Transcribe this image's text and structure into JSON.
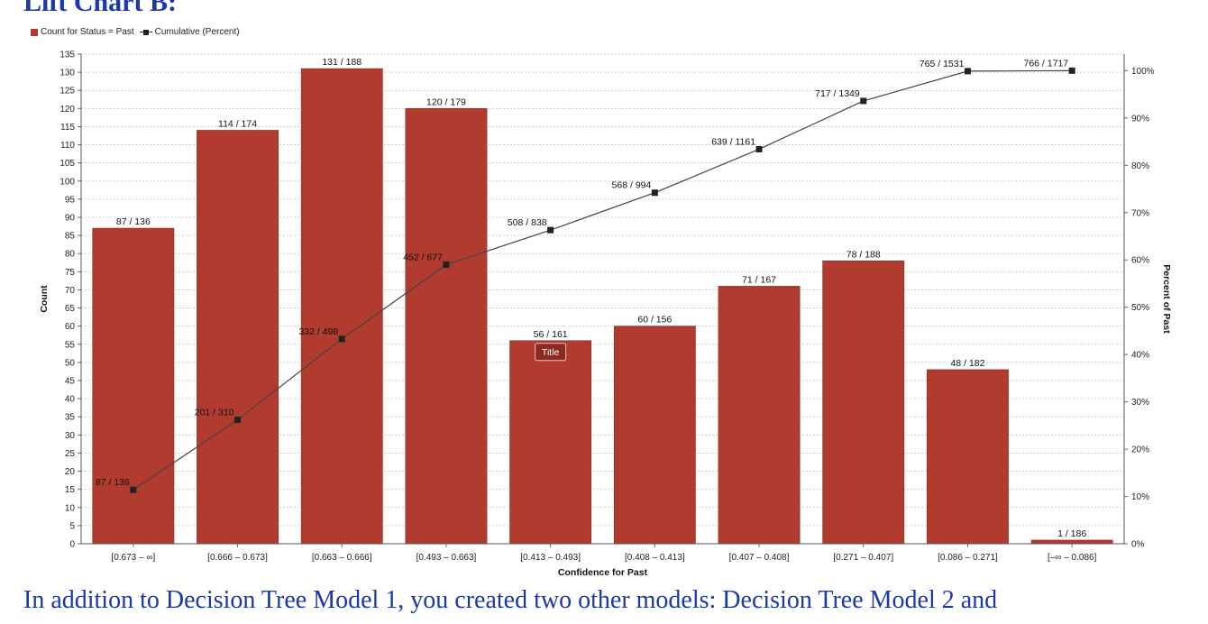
{
  "heading": "Lift Chart B:",
  "legend": {
    "bar_label": "Count for Status = Past",
    "line_label": "Cumulative (Percent)"
  },
  "footer_text": "In addition to Decision Tree Model 1, you created two other models: Decision Tree Model 2 and",
  "colors": {
    "bar": "#b03b2e",
    "line": "#444444",
    "marker": "#222222",
    "text_blue": "#1b38a8"
  },
  "chart_data": {
    "type": "bar",
    "xlabel": "Confidence for Past",
    "ylabel": "Count",
    "y2label": "Percent of Past",
    "ylim": [
      0,
      135
    ],
    "y2lim": [
      0,
      103.5
    ],
    "yticks": [
      0,
      5,
      10,
      15,
      20,
      25,
      30,
      35,
      40,
      45,
      50,
      55,
      60,
      65,
      70,
      75,
      80,
      85,
      90,
      95,
      100,
      105,
      110,
      115,
      120,
      125,
      130,
      135
    ],
    "y2ticks": [
      0,
      10,
      20,
      30,
      40,
      50,
      60,
      70,
      80,
      90,
      100
    ],
    "categories": [
      "[0.673 – ∞]",
      "[0.666 – 0.673]",
      "[0.663 – 0.666]",
      "[0.493 – 0.663]",
      "[0.413 – 0.493]",
      "[0.408 – 0.413]",
      "[0.407 – 0.408]",
      "[0.271 – 0.407]",
      "[0.086 – 0.271]",
      "[–∞ – 0.086]"
    ],
    "series": [
      {
        "name": "Count for Status = Past",
        "kind": "bar",
        "values": [
          87,
          114,
          131,
          120,
          56,
          60,
          71,
          78,
          48,
          1
        ],
        "labels": [
          "87 / 136",
          "114 / 174",
          "131 / 188",
          "120 / 179",
          "56 / 161",
          "60 / 156",
          "71 / 167",
          "78 / 188",
          "48 / 182",
          "1 / 186"
        ]
      },
      {
        "name": "Cumulative (Percent)",
        "kind": "line",
        "axis": "right",
        "values": [
          11.4,
          26.2,
          43.3,
          59.0,
          66.3,
          74.2,
          83.4,
          93.6,
          99.9,
          100
        ],
        "labels": [
          "87 / 136",
          "201 / 310",
          "332 / 498",
          "452 / 677",
          "508 / 838",
          "568 / 994",
          "639 / 1161",
          "717 / 1349",
          "765 / 1531",
          "766 / 1717"
        ]
      }
    ],
    "grid": true,
    "tooltip": "Title",
    "legend_position": "top-left"
  }
}
